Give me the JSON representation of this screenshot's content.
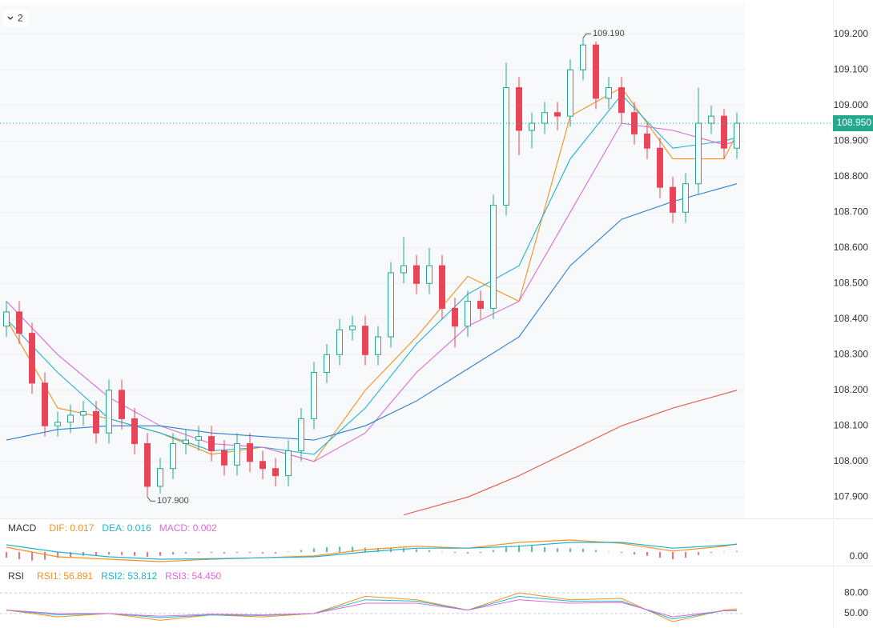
{
  "toolbar_label": "2",
  "chart_data": [
    {
      "type": "candlestick",
      "open": [
        108.38,
        108.42,
        108.36,
        108.22,
        108.1,
        108.11,
        108.13,
        108.14,
        108.08,
        108.2,
        108.12,
        108.05,
        107.93,
        107.98,
        108.05,
        108.06,
        108.07,
        108.03,
        107.99,
        108.05,
        108.0,
        107.98,
        107.96,
        108.03,
        108.12,
        108.25,
        108.3,
        108.37,
        108.38,
        108.3,
        108.35,
        108.53,
        108.55,
        108.5,
        108.55,
        108.43,
        108.38,
        108.45,
        108.43,
        108.72,
        109.05,
        108.93,
        108.95,
        108.98,
        108.97,
        109.1,
        109.17,
        109.02,
        109.05,
        108.98,
        108.92,
        108.88,
        108.77,
        108.7,
        108.78,
        108.95,
        108.97,
        108.88
      ],
      "high": [
        108.45,
        108.45,
        108.39,
        108.25,
        108.14,
        108.16,
        108.17,
        108.17,
        108.23,
        108.23,
        108.15,
        108.08,
        108.01,
        108.08,
        108.09,
        108.1,
        108.1,
        108.06,
        108.08,
        108.08,
        108.03,
        108.01,
        108.06,
        108.15,
        108.28,
        108.33,
        108.4,
        108.41,
        108.41,
        108.38,
        108.56,
        108.63,
        108.58,
        108.6,
        108.58,
        108.46,
        108.48,
        108.48,
        108.75,
        109.12,
        109.08,
        108.98,
        109.01,
        109.01,
        109.13,
        109.19,
        109.18,
        109.08,
        109.08,
        109.01,
        108.95,
        108.91,
        108.8,
        108.81,
        109.05,
        109.0,
        108.99,
        108.98
      ],
      "low": [
        108.35,
        108.33,
        108.19,
        108.07,
        108.07,
        108.08,
        108.1,
        108.05,
        108.05,
        108.09,
        108.02,
        107.9,
        107.91,
        107.95,
        108.02,
        108.03,
        108.0,
        107.96,
        107.96,
        107.97,
        107.95,
        107.93,
        107.93,
        108.0,
        108.09,
        108.22,
        108.27,
        108.34,
        108.27,
        108.27,
        108.32,
        108.5,
        108.47,
        108.47,
        108.4,
        108.32,
        108.35,
        108.4,
        108.4,
        108.69,
        108.86,
        108.88,
        108.92,
        108.93,
        108.94,
        109.07,
        108.99,
        108.99,
        108.95,
        108.89,
        108.85,
        108.74,
        108.67,
        108.67,
        108.75,
        108.92,
        108.85,
        108.85
      ],
      "close": [
        108.42,
        108.36,
        108.22,
        108.1,
        108.11,
        108.13,
        108.14,
        108.08,
        108.2,
        108.12,
        108.05,
        107.93,
        107.98,
        108.05,
        108.06,
        108.07,
        108.03,
        107.99,
        108.05,
        108.0,
        107.98,
        107.96,
        108.03,
        108.12,
        108.25,
        108.3,
        108.37,
        108.38,
        108.3,
        108.35,
        108.53,
        108.55,
        108.5,
        108.55,
        108.43,
        108.38,
        108.45,
        108.43,
        108.72,
        109.05,
        108.93,
        108.95,
        108.98,
        108.97,
        109.1,
        109.17,
        109.02,
        109.05,
        108.98,
        108.92,
        108.88,
        108.77,
        108.7,
        108.78,
        108.95,
        108.97,
        108.88,
        108.95
      ],
      "up_color": "#22a98e",
      "down_color": "#e8455b",
      "ylim": [
        107.84,
        109.285
      ],
      "yticks": [
        {
          "value": 107.9,
          "label": "107.900"
        },
        {
          "value": 108.0,
          "label": "108.000"
        },
        {
          "value": 108.1,
          "label": "108.100"
        },
        {
          "value": 108.2,
          "label": "108.200"
        },
        {
          "value": 108.3,
          "label": "108.300"
        },
        {
          "value": 108.4,
          "label": "108.400"
        },
        {
          "value": 108.5,
          "label": "108.500"
        },
        {
          "value": 108.6,
          "label": "108.600"
        },
        {
          "value": 108.7,
          "label": "108.700"
        },
        {
          "value": 108.8,
          "label": "108.800"
        },
        {
          "value": 108.9,
          "label": "108.900"
        },
        {
          "value": 109.0,
          "label": "109.000"
        },
        {
          "value": 109.1,
          "label": "109.100"
        },
        {
          "value": 109.2,
          "label": "109.200"
        }
      ],
      "grid": true,
      "overlays": [
        {
          "color": "#f5901e",
          "x": [
            0,
            4,
            8,
            12,
            16,
            20,
            24,
            28,
            32,
            36,
            40,
            44,
            48,
            52,
            56,
            57
          ],
          "values": [
            108.4,
            108.15,
            108.12,
            108.08,
            108.02,
            108.04,
            108.0,
            108.2,
            108.35,
            108.52,
            108.45,
            108.97,
            109.05,
            108.85,
            108.85,
            108.92
          ]
        },
        {
          "color": "#1fb3d2",
          "x": [
            0,
            4,
            8,
            12,
            16,
            20,
            24,
            28,
            32,
            36,
            40,
            44,
            48,
            52,
            56,
            57
          ],
          "values": [
            108.4,
            108.25,
            108.12,
            108.08,
            108.03,
            108.04,
            108.02,
            108.15,
            108.33,
            108.47,
            108.55,
            108.85,
            109.03,
            108.88,
            108.9,
            108.91
          ]
        },
        {
          "color": "#de6ad6",
          "x": [
            0,
            4,
            8,
            12,
            16,
            20,
            24,
            28,
            32,
            36,
            40,
            44,
            48,
            52,
            56,
            57
          ],
          "values": [
            108.45,
            108.3,
            108.18,
            108.1,
            108.05,
            108.04,
            108.0,
            108.08,
            108.25,
            108.38,
            108.45,
            108.7,
            108.95,
            108.93,
            108.89,
            108.9
          ]
        },
        {
          "color": "#2b7fd4",
          "x": [
            0,
            4,
            8,
            12,
            16,
            20,
            24,
            28,
            32,
            36,
            40,
            44,
            48,
            52,
            56,
            57
          ],
          "values": [
            108.06,
            108.09,
            108.1,
            108.1,
            108.08,
            108.07,
            108.06,
            108.1,
            108.17,
            108.26,
            108.35,
            108.55,
            108.68,
            108.73,
            108.77,
            108.78
          ]
        },
        {
          "color": "#e8574a",
          "x": [
            31,
            36,
            40,
            44,
            48,
            52,
            56,
            57
          ],
          "values": [
            107.85,
            107.9,
            107.96,
            108.03,
            108.1,
            108.15,
            108.19,
            108.2
          ]
        }
      ],
      "annotations": [
        {
          "value": 109.19,
          "label": "109.190"
        },
        {
          "value": 107.9,
          "label": "107.900"
        }
      ],
      "last_price": {
        "value": 108.95,
        "label": "108.950"
      }
    },
    {
      "type": "macd",
      "title": "MACD",
      "bars_name": "MACD: 0.002",
      "bars_color": "#de6ad6",
      "up_color": "#22a98e",
      "down_color": "#e8455b",
      "bars": [
        -0.012,
        -0.015,
        -0.018,
        -0.016,
        -0.012,
        -0.01,
        -0.008,
        -0.008,
        -0.005,
        -0.006,
        -0.008,
        -0.01,
        -0.008,
        -0.005,
        -0.003,
        -0.002,
        -0.002,
        -0.003,
        -0.002,
        -0.002,
        -0.003,
        -0.003,
        0.001,
        0.004,
        0.008,
        0.01,
        0.011,
        0.011,
        0.009,
        0.008,
        0.009,
        0.008,
        0.006,
        0.004,
        0.001,
        -0.002,
        -0.003,
        -0.002,
        0.004,
        0.012,
        0.014,
        0.013,
        0.01,
        0.008,
        0.008,
        0.007,
        0.004,
        0.001,
        -0.002,
        -0.005,
        -0.008,
        -0.012,
        -0.015,
        -0.012,
        -0.006,
        -0.002,
        0.001,
        0.002
      ],
      "series": [
        {
          "name": "DIF: 0.017",
          "color": "#f5901e",
          "x": [
            0,
            4,
            8,
            12,
            16,
            20,
            24,
            28,
            32,
            36,
            40,
            44,
            48,
            52,
            56,
            57
          ],
          "values": [
            0.01,
            -0.01,
            -0.015,
            -0.02,
            -0.015,
            -0.012,
            -0.008,
            0.005,
            0.012,
            0.008,
            0.02,
            0.025,
            0.018,
            0.002,
            0.012,
            0.017
          ]
        },
        {
          "name": "DEA: 0.016",
          "color": "#1fb3d2",
          "x": [
            0,
            4,
            8,
            12,
            16,
            20,
            24,
            28,
            32,
            36,
            40,
            44,
            48,
            52,
            56,
            57
          ],
          "values": [
            0.015,
            0.0,
            -0.01,
            -0.015,
            -0.014,
            -0.012,
            -0.01,
            0.0,
            0.008,
            0.008,
            0.012,
            0.02,
            0.02,
            0.008,
            0.014,
            0.016
          ]
        }
      ],
      "ylim": [
        -0.025,
        0.05
      ],
      "yticks": [
        {
          "value": 0,
          "label": "0.00"
        }
      ]
    },
    {
      "type": "line",
      "title": "RSI",
      "series": [
        {
          "name": "RSI1: 56.891",
          "color": "#f5901e",
          "x": [
            0,
            4,
            8,
            12,
            16,
            20,
            24,
            28,
            32,
            36,
            40,
            44,
            48,
            52,
            56,
            57
          ],
          "values": [
            55,
            45,
            50,
            40,
            48,
            45,
            50,
            75,
            70,
            55,
            80,
            70,
            72,
            38,
            55,
            56.891
          ]
        },
        {
          "name": "RSI2: 53.812",
          "color": "#1fb3d2",
          "x": [
            0,
            4,
            8,
            12,
            16,
            20,
            24,
            28,
            32,
            36,
            40,
            44,
            48,
            52,
            56,
            57
          ],
          "values": [
            55,
            48,
            50,
            44,
            48,
            47,
            50,
            70,
            68,
            55,
            75,
            68,
            68,
            42,
            54,
            53.812
          ]
        },
        {
          "name": "RSI3: 54.450",
          "color": "#de6ad6",
          "x": [
            0,
            4,
            8,
            12,
            16,
            20,
            24,
            28,
            32,
            36,
            40,
            44,
            48,
            52,
            56,
            57
          ],
          "values": [
            55,
            50,
            50,
            46,
            49,
            48,
            50,
            65,
            65,
            55,
            70,
            65,
            66,
            45,
            54,
            54.45
          ]
        }
      ],
      "ylim": [
        30,
        100
      ],
      "yticks": [
        {
          "value": 80,
          "label": "80.00"
        },
        {
          "value": 50,
          "label": "50.00"
        }
      ]
    }
  ]
}
